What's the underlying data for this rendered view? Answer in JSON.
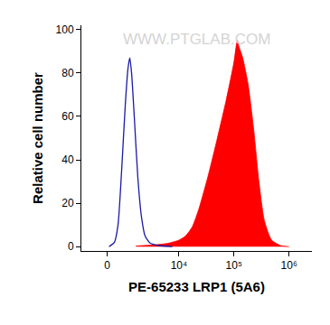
{
  "chart_data": {
    "type": "line",
    "x_label": "PE-65233 LRP1 (5A6)",
    "y_label": "Relative cell number",
    "annotations": [
      "WWW.PTGLAB.COM"
    ],
    "log": "x",
    "grid": false,
    "xlim": [
      -1300,
      2600000
    ],
    "xticks": [
      0,
      {
        "value": 10000,
        "label": "10⁴"
      },
      {
        "value": 100000,
        "label": "10⁵"
      },
      {
        "value": 1000000,
        "label": "10⁶"
      }
    ],
    "ylim": [
      -2,
      102
    ],
    "yticks": [
      0,
      20,
      40,
      60,
      80,
      100
    ],
    "series": [
      {
        "type": "area",
        "color": "#ff0000",
        "x": [
          1520,
          3490,
          6240,
          10000,
          13300,
          17400,
          23500,
          34300,
          50000,
          73000,
          100000,
          115000,
          124000,
          144000,
          180000,
          226000,
          284000,
          356000,
          482000,
          703000,
          1000000
        ],
        "values": [
          0.3,
          0.8,
          1.5,
          3,
          5,
          9,
          18,
          33,
          50,
          68,
          85,
          95,
          92,
          87,
          75,
          55,
          30,
          12,
          3,
          0.5,
          0
        ]
      },
      {
        "type": "line",
        "color": "#1a1aa8",
        "x": [
          76,
          307,
          469,
          641,
          829,
          982,
          1093,
          1205,
          1390,
          1660,
          1970,
          2330,
          2970,
          4240,
          7550
        ],
        "values": [
          0,
          2,
          10,
          35,
          65,
          82,
          87,
          80,
          60,
          32,
          14,
          5,
          1.5,
          0.5,
          0
        ]
      }
    ]
  }
}
